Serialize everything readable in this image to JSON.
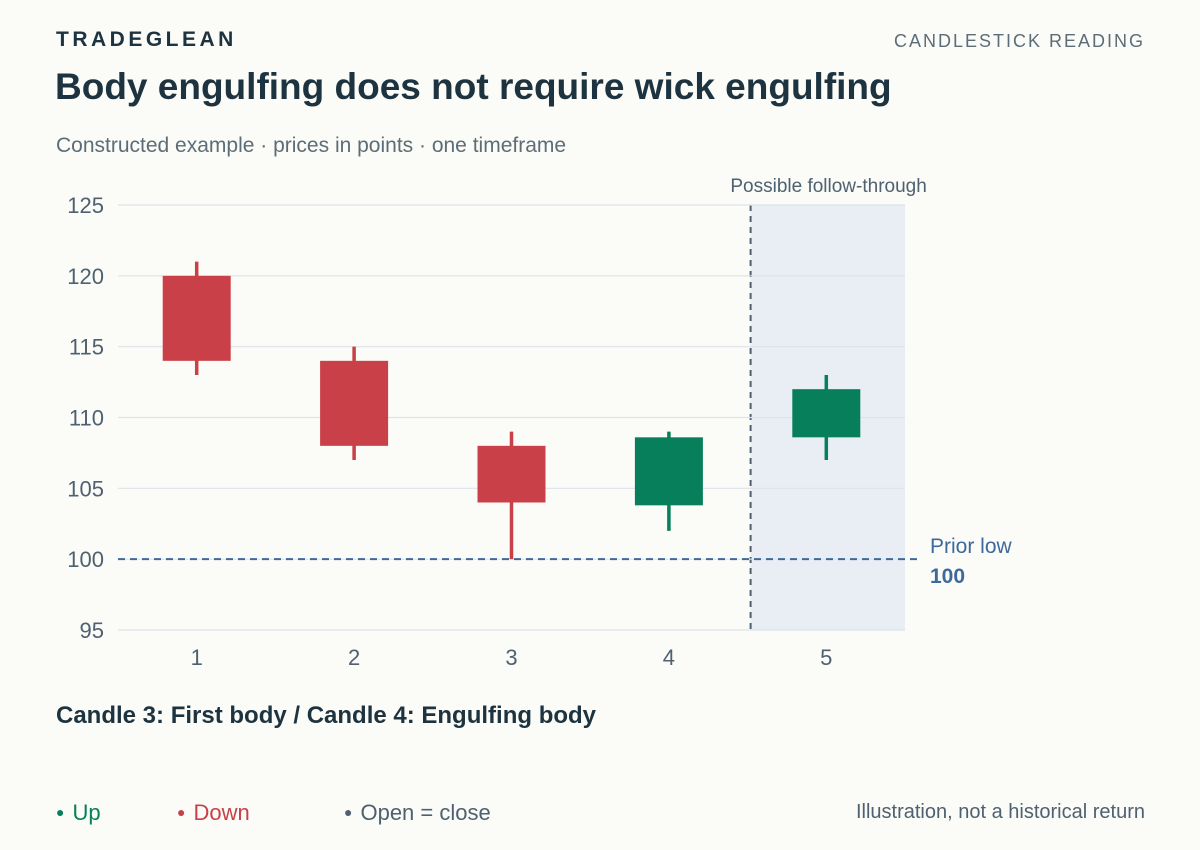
{
  "header": {
    "brand": "TRADEGLEAN",
    "kicker": "CANDLESTICK READING",
    "title": "Body engulfing does not require wick engulfing",
    "subtitle": "Constructed example · prices in points · one timeframe"
  },
  "note": "Candle 3: First body / Candle 4: Engulfing body",
  "legend": {
    "up": "Up",
    "down": "Down",
    "flat": "Open = close"
  },
  "disclaimer": "Illustration, not a historical return",
  "colors": {
    "up": "#087f5b",
    "down": "#c94048",
    "flat": "#4f6170",
    "reference": "#3d6a9c",
    "shade": "#e9eef5",
    "grid": "#dde3ea"
  },
  "chart_data": {
    "type": "candlestick",
    "categories": [
      "1",
      "2",
      "3",
      "4",
      "5"
    ],
    "candles": [
      {
        "x": "1",
        "open": 120,
        "high": 121,
        "low": 113,
        "close": 114
      },
      {
        "x": "2",
        "open": 114,
        "high": 115,
        "low": 107,
        "close": 108
      },
      {
        "x": "3",
        "open": 108,
        "high": 109,
        "low": 100,
        "close": 104
      },
      {
        "x": "4",
        "open": 103.8,
        "high": 109,
        "low": 102,
        "close": 108.6
      },
      {
        "x": "5",
        "open": 108.6,
        "high": 113,
        "low": 107,
        "close": 112
      }
    ],
    "ylim": [
      95,
      125
    ],
    "yticks": [
      95,
      100,
      105,
      110,
      115,
      120,
      125
    ],
    "grid": true,
    "reference_line": {
      "value": 100,
      "label": "Prior low",
      "value_label": "100"
    },
    "shaded_region": {
      "category": "5",
      "label": "Possible follow-through"
    }
  }
}
